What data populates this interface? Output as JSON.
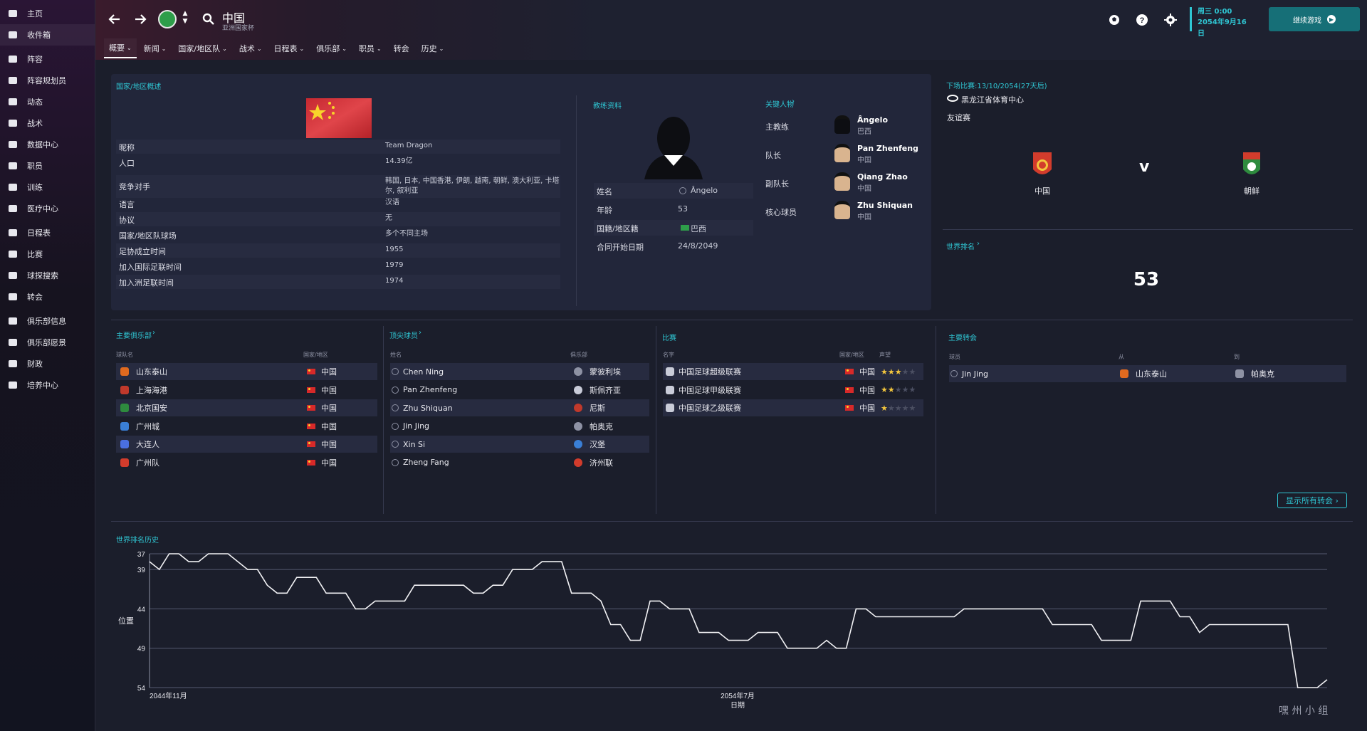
{
  "sidebar": {
    "items": [
      {
        "label": "主页",
        "icon": "home-icon"
      },
      {
        "label": "收件箱",
        "icon": "inbox-icon"
      },
      {
        "label": "阵容",
        "icon": "shirt-icon"
      },
      {
        "label": "阵容规划员",
        "icon": "clipboard-icon"
      },
      {
        "label": "动态",
        "icon": "dynamics-icon"
      },
      {
        "label": "战术",
        "icon": "tactics-icon"
      },
      {
        "label": "数据中心",
        "icon": "data-hub-icon"
      },
      {
        "label": "职员",
        "icon": "staff-icon"
      },
      {
        "label": "训练",
        "icon": "training-icon"
      },
      {
        "label": "医疗中心",
        "icon": "medical-icon"
      },
      {
        "label": "日程表",
        "icon": "calendar-icon"
      },
      {
        "label": "比赛",
        "icon": "trophy-icon"
      },
      {
        "label": "球探搜索",
        "icon": "scout-icon"
      },
      {
        "label": "转会",
        "icon": "transfer-icon"
      },
      {
        "label": "俱乐部信息",
        "icon": "shield-icon"
      },
      {
        "label": "俱乐部愿景",
        "icon": "vision-icon"
      },
      {
        "label": "财政",
        "icon": "finance-icon"
      },
      {
        "label": "培养中心",
        "icon": "development-icon"
      }
    ]
  },
  "header": {
    "title": "中国",
    "subtitle": "亚洲国家杯",
    "date_day": "周三 0:00",
    "date_full": "2054年9月16日",
    "continue_label": "继续游戏"
  },
  "tabs": [
    {
      "label": "概要",
      "chevron": true
    },
    {
      "label": "新闻",
      "chevron": true
    },
    {
      "label": "国家/地区队",
      "chevron": true
    },
    {
      "label": "战术",
      "chevron": true
    },
    {
      "label": "日程表",
      "chevron": true
    },
    {
      "label": "俱乐部",
      "chevron": true
    },
    {
      "label": "职员",
      "chevron": true
    },
    {
      "label": "转会",
      "chevron": false
    },
    {
      "label": "历史",
      "chevron": true
    }
  ],
  "overview": {
    "section_title": "国家/地区概述",
    "rows": [
      {
        "label": "昵称",
        "value": "Team Dragon"
      },
      {
        "label": "人口",
        "value": "14.39亿"
      },
      {
        "label": "竞争对手",
        "value": "韩国, 日本, 中国香港, 伊朗, 越南, 朝鲜, 澳大利亚, 卡塔尔, 叙利亚"
      },
      {
        "label": "语言",
        "value": "汉语"
      },
      {
        "label": "协议",
        "value": "无"
      },
      {
        "label": "国家/地区队球场",
        "value": "多个不同主场"
      },
      {
        "label": "足协成立时间",
        "value": "1955"
      },
      {
        "label": "加入国际足联时间",
        "value": "1979"
      },
      {
        "label": "加入洲足联时间",
        "value": "1974"
      }
    ]
  },
  "coach": {
    "section_title": "教练资料",
    "rows": [
      {
        "label": "姓名",
        "value": "Ângelo"
      },
      {
        "label": "年龄",
        "value": "53"
      },
      {
        "label": "国籍/地区籍",
        "value": "巴西"
      },
      {
        "label": "合同开始日期",
        "value": "24/8/2049"
      }
    ]
  },
  "key_people": {
    "section_title": "关键人物",
    "rows": [
      {
        "role": "主教练",
        "name": "Ângelo",
        "nation": "巴西"
      },
      {
        "role": "队长",
        "name": "Pan Zhenfeng",
        "nation": "中国"
      },
      {
        "role": "副队长",
        "name": "Qiang Zhao",
        "nation": "中国"
      },
      {
        "role": "核心球员",
        "name": "Zhu Shiquan",
        "nation": "中国"
      }
    ]
  },
  "next_match": {
    "section_title": "下场比赛:13/10/2054(27天后)",
    "venue": "黑龙江省体育中心",
    "competition": "友谊赛",
    "home": "中国",
    "vs": "v",
    "away": "朝鲜"
  },
  "world_rank": {
    "section_title": "世界排名",
    "value": "53"
  },
  "main_clubs": {
    "section_title": "主要俱乐部",
    "col_name": "球队名",
    "col_nation": "国家/地区",
    "rows": [
      {
        "name": "山东泰山",
        "nation": "中国",
        "color": "#e06a1f"
      },
      {
        "name": "上海海港",
        "nation": "中国",
        "color": "#c0392b"
      },
      {
        "name": "北京国安",
        "nation": "中国",
        "color": "#2e8b3e"
      },
      {
        "name": "广州城",
        "nation": "中国",
        "color": "#3a7fd6"
      },
      {
        "name": "大连人",
        "nation": "中国",
        "color": "#4a6fe0"
      },
      {
        "name": "广州队",
        "nation": "中国",
        "color": "#d23c2c"
      }
    ]
  },
  "top_players": {
    "section_title": "顶尖球员",
    "col_name": "姓名",
    "col_club": "俱乐部",
    "rows": [
      {
        "name": "Chen Ning",
        "club": "蒙彼利埃"
      },
      {
        "name": "Pan Zhenfeng",
        "club": "斯佩齐亚"
      },
      {
        "name": "Zhu Shiquan",
        "club": "尼斯"
      },
      {
        "name": "Jin Jing",
        "club": "帕奥克"
      },
      {
        "name": "Xin Si",
        "club": "汉堡"
      },
      {
        "name": "Zheng Fang",
        "club": "济州联"
      }
    ]
  },
  "competitions": {
    "section_title": "比赛",
    "col_name": "名字",
    "col_nation": "国家/地区",
    "col_rep": "声望",
    "rows": [
      {
        "name": "中国足球超级联赛",
        "nation": "中国",
        "stars": 3
      },
      {
        "name": "中国足球甲级联赛",
        "nation": "中国",
        "stars": 2
      },
      {
        "name": "中国足球乙级联赛",
        "nation": "中国",
        "stars": 1
      }
    ]
  },
  "transfers": {
    "section_title": "主要转会",
    "col_player": "球员",
    "col_from": "从",
    "col_to": "到",
    "rows": [
      {
        "player": "Jin Jing",
        "from": "山东泰山",
        "to": "帕奥克"
      }
    ],
    "show_all_label": "显示所有转会"
  },
  "chart_data": {
    "type": "line",
    "title": "世界排名历史",
    "ylabel": "位置",
    "xlabel": "日期",
    "x_tick_labels": [
      "2044年11月",
      "2054年7月"
    ],
    "y_ticks": [
      37,
      39,
      44,
      49,
      54
    ],
    "ylim": [
      37,
      54
    ],
    "y_inverted": true,
    "series": [
      {
        "values": [
          38,
          39,
          37,
          37,
          38,
          38,
          37,
          37,
          37,
          38,
          39,
          39,
          41,
          42,
          42,
          40,
          40,
          40,
          42,
          42,
          42,
          44,
          44,
          43,
          43,
          43,
          43,
          41,
          41,
          41,
          41,
          41,
          41,
          42,
          42,
          41,
          41,
          39,
          39,
          39,
          38,
          38,
          38,
          42,
          42,
          42,
          43,
          46,
          46,
          48,
          48,
          43,
          43,
          44,
          44,
          44,
          47,
          47,
          47,
          48,
          48,
          48,
          47,
          47,
          47,
          49,
          49,
          49,
          49,
          48,
          49,
          49,
          44,
          44,
          45,
          45,
          45,
          45,
          45,
          45,
          45,
          45,
          45,
          44,
          44,
          44,
          44,
          44,
          44,
          44,
          44,
          44,
          46,
          46,
          46,
          46,
          46,
          48,
          48,
          48,
          48,
          43,
          43,
          43,
          43,
          45,
          45,
          47,
          46,
          46,
          46,
          46,
          46,
          46,
          46,
          46,
          46,
          54,
          54,
          54,
          53
        ]
      }
    ]
  },
  "watermark": "嘿 州 小 组"
}
